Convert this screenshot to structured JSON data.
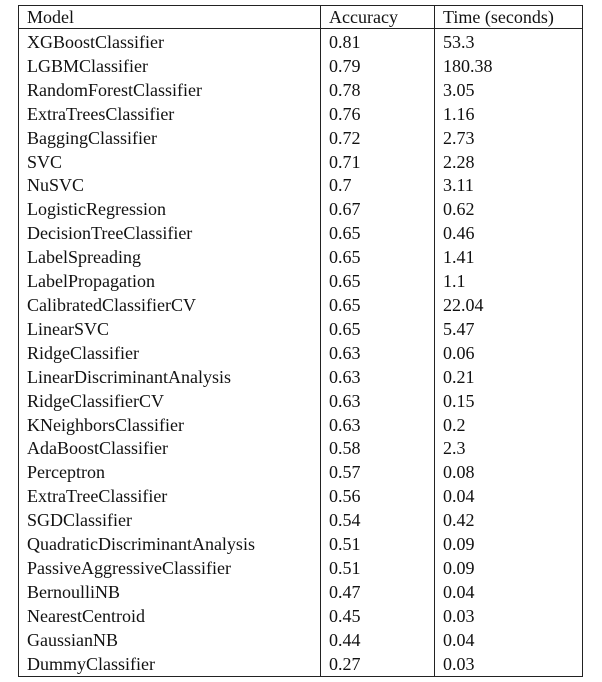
{
  "table": {
    "headers": [
      "Model",
      "Accuracy",
      "Time (seconds)"
    ],
    "rows": [
      [
        "XGBoostClassifier",
        "0.81",
        "53.3"
      ],
      [
        "LGBMClassifier",
        "0.79",
        "180.38"
      ],
      [
        "RandomForestClassifier",
        "0.78",
        "3.05"
      ],
      [
        "ExtraTreesClassifier",
        "0.76",
        "1.16"
      ],
      [
        "BaggingClassifier",
        "0.72",
        "2.73"
      ],
      [
        "SVC",
        "0.71",
        "2.28"
      ],
      [
        "NuSVC",
        "0.7",
        "3.11"
      ],
      [
        "LogisticRegression",
        "0.67",
        "0.62"
      ],
      [
        "DecisionTreeClassifier",
        "0.65",
        "0.46"
      ],
      [
        "LabelSpreading",
        "0.65",
        "1.41"
      ],
      [
        "LabelPropagation",
        "0.65",
        "1.1"
      ],
      [
        "CalibratedClassifierCV",
        "0.65",
        "22.04"
      ],
      [
        "LinearSVC",
        "0.65",
        "5.47"
      ],
      [
        "RidgeClassifier",
        "0.63",
        "0.06"
      ],
      [
        "LinearDiscriminantAnalysis",
        "0.63",
        "0.21"
      ],
      [
        "RidgeClassifierCV",
        "0.63",
        "0.15"
      ],
      [
        "KNeighborsClassifier",
        "0.63",
        "0.2"
      ],
      [
        "AdaBoostClassifier",
        "0.58",
        "2.3"
      ],
      [
        "Perceptron",
        "0.57",
        "0.08"
      ],
      [
        "ExtraTreeClassifier",
        "0.56",
        "0.04"
      ],
      [
        "SGDClassifier",
        "0.54",
        "0.42"
      ],
      [
        "QuadraticDiscriminantAnalysis",
        "0.51",
        "0.09"
      ],
      [
        "PassiveAggressiveClassifier",
        "0.51",
        "0.09"
      ],
      [
        "BernoulliNB",
        "0.47",
        "0.04"
      ],
      [
        "NearestCentroid",
        "0.45",
        "0.03"
      ],
      [
        "GaussianNB",
        "0.44",
        "0.04"
      ],
      [
        "DummyClassifier",
        "0.27",
        "0.03"
      ]
    ]
  }
}
